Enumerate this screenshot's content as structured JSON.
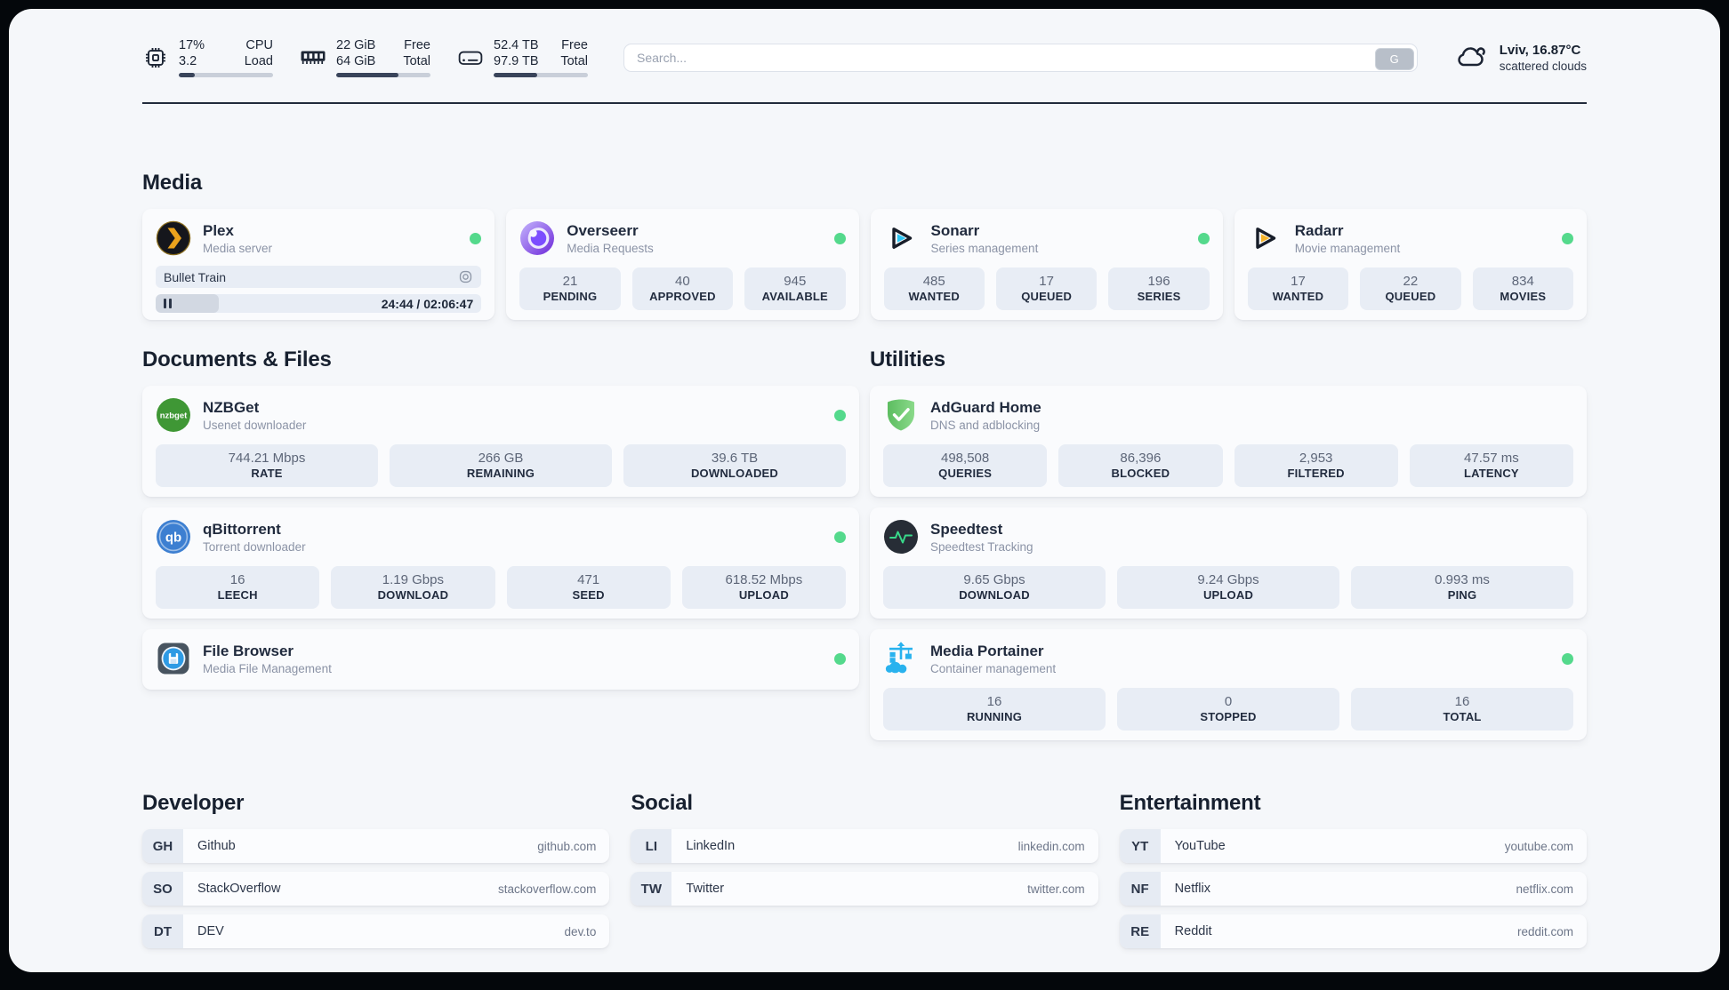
{
  "colors": {
    "accent_green": "#54d98c",
    "page_bg": "#f5f7fa",
    "card_bg": "#fafbfd",
    "pill_bg": "#e8edf5",
    "text_dark": "#1e2738",
    "text_gray": "#8b93a6",
    "bar_fill": "#39445a"
  },
  "header": {
    "cpu": {
      "icon": "cpu-icon",
      "value_top": "17%",
      "value_bottom": "3.2",
      "label_top": "CPU",
      "label_bottom": "Load",
      "progress_pct": 17
    },
    "ram": {
      "icon": "ram-icon",
      "value_top": "22 GiB",
      "value_bottom": "64 GiB",
      "label_top": "Free",
      "label_bottom": "Total",
      "progress_pct": 66
    },
    "disk": {
      "icon": "disk-icon",
      "value_top": "52.4 TB",
      "value_bottom": "97.9 TB",
      "label_top": "Free",
      "label_bottom": "Total",
      "progress_pct": 46
    },
    "search": {
      "placeholder": "Search...",
      "button_label": "G"
    },
    "weather": {
      "icon": "cloud-icon",
      "location_temp": "Lviv, 16.87°C",
      "condition": "scattered clouds"
    }
  },
  "sections": {
    "media": "Media",
    "documents": "Documents & Files",
    "utilities": "Utilities",
    "developer": "Developer",
    "social": "Social",
    "entertainment": "Entertainment"
  },
  "apps": {
    "plex": {
      "icon": "plex-icon",
      "name": "Plex",
      "desc": "Media server",
      "online": true,
      "now_playing": {
        "title": "Bullet Train",
        "state": "paused",
        "time": "24:44 / 02:06:47",
        "progress_pct": 19.5
      }
    },
    "overseerr": {
      "icon": "overseerr-icon",
      "name": "Overseerr",
      "desc": "Media Requests",
      "online": true,
      "stats": [
        {
          "value": "21",
          "label": "PENDING"
        },
        {
          "value": "40",
          "label": "APPROVED"
        },
        {
          "value": "945",
          "label": "AVAILABLE"
        }
      ]
    },
    "sonarr": {
      "icon": "sonarr-icon",
      "name": "Sonarr",
      "desc": "Series management",
      "online": true,
      "stats": [
        {
          "value": "485",
          "label": "WANTED"
        },
        {
          "value": "17",
          "label": "QUEUED"
        },
        {
          "value": "196",
          "label": "SERIES"
        }
      ]
    },
    "radarr": {
      "icon": "radarr-icon",
      "name": "Radarr",
      "desc": "Movie management",
      "online": true,
      "stats": [
        {
          "value": "17",
          "label": "WANTED"
        },
        {
          "value": "22",
          "label": "QUEUED"
        },
        {
          "value": "834",
          "label": "MOVIES"
        }
      ]
    },
    "nzbget": {
      "icon": "nzbget-icon",
      "name": "NZBGet",
      "desc": "Usenet downloader",
      "online": true,
      "stats": [
        {
          "value": "744.21 Mbps",
          "label": "RATE"
        },
        {
          "value": "266 GB",
          "label": "REMAINING"
        },
        {
          "value": "39.6 TB",
          "label": "DOWNLOADED"
        }
      ]
    },
    "qbittorrent": {
      "icon": "qbittorrent-icon",
      "name": "qBittorrent",
      "desc": "Torrent downloader",
      "online": true,
      "stats": [
        {
          "value": "16",
          "label": "LEECH"
        },
        {
          "value": "1.19 Gbps",
          "label": "DOWNLOAD"
        },
        {
          "value": "471",
          "label": "SEED"
        },
        {
          "value": "618.52 Mbps",
          "label": "UPLOAD"
        }
      ]
    },
    "filebrowser": {
      "icon": "filebrowser-icon",
      "name": "File Browser",
      "desc": "Media File Management",
      "online": true
    },
    "adguard": {
      "icon": "adguard-icon",
      "name": "AdGuard Home",
      "desc": "DNS and adblocking",
      "stats": [
        {
          "value": "498,508",
          "label": "QUERIES"
        },
        {
          "value": "86,396",
          "label": "BLOCKED"
        },
        {
          "value": "2,953",
          "label": "FILTERED"
        },
        {
          "value": "47.57 ms",
          "label": "LATENCY"
        }
      ]
    },
    "speedtest": {
      "icon": "speedtest-icon",
      "name": "Speedtest",
      "desc": "Speedtest Tracking",
      "stats": [
        {
          "value": "9.65 Gbps",
          "label": "DOWNLOAD"
        },
        {
          "value": "9.24 Gbps",
          "label": "UPLOAD"
        },
        {
          "value": "0.993 ms",
          "label": "PING"
        }
      ]
    },
    "portainer": {
      "icon": "portainer-icon",
      "name": "Media Portainer",
      "desc": "Container management",
      "online": true,
      "stats": [
        {
          "value": "16",
          "label": "RUNNING"
        },
        {
          "value": "0",
          "label": "STOPPED"
        },
        {
          "value": "16",
          "label": "TOTAL"
        }
      ]
    }
  },
  "links": {
    "developer": [
      {
        "abbr": "GH",
        "name": "Github",
        "url": "github.com"
      },
      {
        "abbr": "SO",
        "name": "StackOverflow",
        "url": "stackoverflow.com"
      },
      {
        "abbr": "DT",
        "name": "DEV",
        "url": "dev.to"
      }
    ],
    "social": [
      {
        "abbr": "LI",
        "name": "LinkedIn",
        "url": "linkedin.com"
      },
      {
        "abbr": "TW",
        "name": "Twitter",
        "url": "twitter.com"
      }
    ],
    "entertainment": [
      {
        "abbr": "YT",
        "name": "YouTube",
        "url": "youtube.com"
      },
      {
        "abbr": "NF",
        "name": "Netflix",
        "url": "netflix.com"
      },
      {
        "abbr": "RE",
        "name": "Reddit",
        "url": "reddit.com"
      }
    ]
  }
}
